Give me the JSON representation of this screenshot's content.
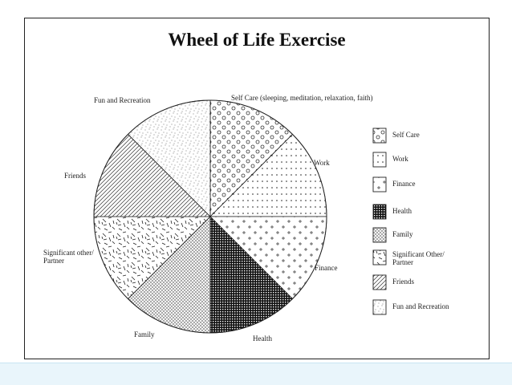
{
  "title": "Wheel of Life Exercise",
  "sections": [
    {
      "id": "self-care",
      "label": "Self Care (sleeping, meditation, relaxation, faith)",
      "legend": "Self Care",
      "pattern": "circles",
      "start": -90,
      "end": -45
    },
    {
      "id": "work",
      "label": "Work",
      "legend": "Work",
      "pattern": "dots",
      "start": -45,
      "end": 0
    },
    {
      "id": "finance",
      "label": "Finance",
      "legend": "Finance",
      "pattern": "plus",
      "start": 0,
      "end": 45
    },
    {
      "id": "health",
      "label": "Health",
      "legend": "Health",
      "pattern": "grid",
      "start": 45,
      "end": 90
    },
    {
      "id": "family",
      "label": "Family",
      "legend": "Family",
      "pattern": "crosshatch",
      "start": 90,
      "end": 135
    },
    {
      "id": "significant-other",
      "label": "Significant other/\nPartner",
      "legend": "Significant Other/\nPartner",
      "pattern": "confetti",
      "start": 135,
      "end": 180
    },
    {
      "id": "friends",
      "label": "Friends",
      "legend": "Friends",
      "pattern": "diagonal",
      "start": 180,
      "end": 225
    },
    {
      "id": "fun-recreation",
      "label": "Fun and Recreation",
      "legend": "Fun and Recreation",
      "pattern": "speckle",
      "start": 225,
      "end": 270
    }
  ]
}
